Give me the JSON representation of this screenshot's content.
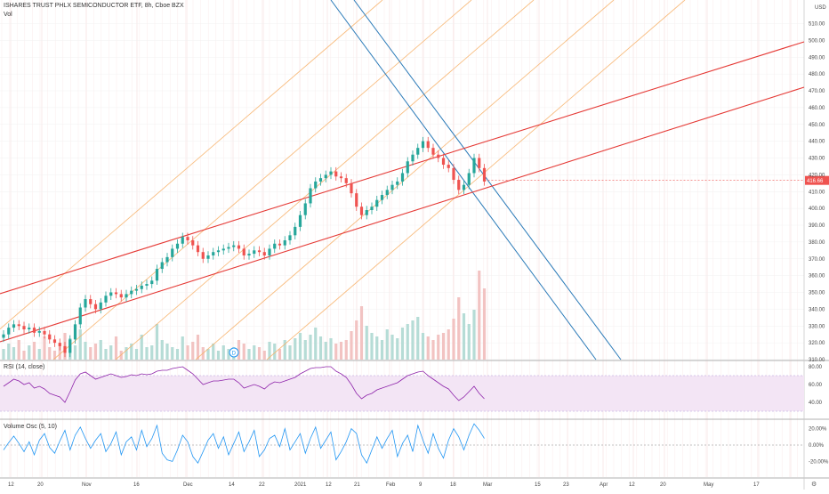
{
  "header": {
    "title": "ISHARES TRUST PHLX SEMICONDUCTOR ETF, 8h, Cboe BZX",
    "vol_label": "Vol",
    "currency": "USD"
  },
  "price_pane": {
    "y_ticks": [
      "510.00",
      "500.00",
      "490.00",
      "480.00",
      "470.00",
      "460.00",
      "450.00",
      "440.00",
      "430.00",
      "420.00",
      "410.00",
      "400.00",
      "390.00",
      "380.00",
      "370.00",
      "360.00",
      "350.00",
      "340.00",
      "330.00",
      "320.00",
      "310.00"
    ],
    "last_price": "416.66",
    "badge_letter": "D"
  },
  "rsi_pane": {
    "label": "RSI (14, close)",
    "y_ticks": [
      "80.00",
      "60.00",
      "40.00"
    ]
  },
  "vol_osc_pane": {
    "label": "Volume Osc (5, 10)",
    "y_ticks": [
      "20.00%",
      "0.00%",
      "-20.00%"
    ]
  },
  "x_axis": {
    "ticks": [
      "12",
      "20",
      "Nov",
      "16",
      "Dec",
      "14",
      "22",
      "2021",
      "12",
      "21",
      "Feb",
      "9",
      "18",
      "Mar",
      "15",
      "23",
      "Apr",
      "12",
      "20",
      "May",
      "17"
    ]
  },
  "colors": {
    "up": "#26a69a",
    "down": "#ef5350",
    "channel_red": "#e53935",
    "blue_lines": "#2a7ab8",
    "orange_lines": "#f7b26a",
    "rsi_line": "#8e24aa",
    "rsi_band": "#f3e5f5",
    "osc_line": "#2196f3",
    "badge": "#2196f3"
  },
  "chart_data": [
    {
      "type": "candlestick",
      "title": "ISHARES TRUST PHLX SEMICONDUCTOR ETF, 8h, Cboe BZX",
      "ylim": [
        310,
        515
      ],
      "series": [
        {
          "name": "Vol",
          "close": [
            325,
            329,
            331,
            330,
            328,
            329,
            326,
            327,
            325,
            322,
            320,
            318,
            314,
            322,
            331,
            341,
            346,
            343,
            340,
            344,
            348,
            350,
            349,
            347,
            349,
            351,
            352,
            354,
            355,
            357,
            364,
            368,
            371,
            376,
            379,
            383,
            381,
            378,
            374,
            370,
            372,
            374,
            375,
            376,
            377,
            378,
            376,
            372,
            373,
            375,
            374,
            372,
            376,
            379,
            378,
            381,
            384,
            389,
            396,
            403,
            412,
            416,
            418,
            420,
            422,
            419,
            418,
            415,
            409,
            401,
            396,
            399,
            401,
            405,
            408,
            411,
            414,
            416,
            421,
            428,
            432,
            436,
            440,
            436,
            432,
            430,
            426,
            424,
            417,
            411,
            414,
            421,
            430,
            424,
            416
          ]
        }
      ]
    },
    {
      "type": "line",
      "title": "RSI (14, close)",
      "ylim": [
        30,
        82
      ],
      "series": [
        {
          "name": "RSI (14, close)",
          "values": [
            58,
            62,
            66,
            64,
            60,
            62,
            56,
            58,
            55,
            50,
            48,
            46,
            40,
            52,
            65,
            72,
            74,
            70,
            66,
            68,
            70,
            72,
            70,
            68,
            69,
            71,
            70,
            72,
            71,
            72,
            75,
            76,
            76,
            78,
            79,
            80,
            76,
            72,
            66,
            60,
            62,
            64,
            64,
            65,
            66,
            66,
            62,
            56,
            58,
            60,
            58,
            55,
            60,
            63,
            62,
            64,
            66,
            68,
            72,
            75,
            78,
            79,
            79,
            80,
            80,
            75,
            72,
            68,
            60,
            50,
            44,
            48,
            50,
            54,
            56,
            58,
            60,
            62,
            66,
            70,
            72,
            74,
            75,
            70,
            66,
            62,
            58,
            55,
            48,
            42,
            46,
            52,
            58,
            50,
            44
          ]
        }
      ]
    },
    {
      "type": "line",
      "title": "Volume Osc (5, 10)",
      "ylim": [
        -32,
        32
      ],
      "series": [
        {
          "name": "Volume Osc (5, 10)",
          "values": [
            -6,
            3,
            11,
            2,
            -8,
            4,
            -12,
            6,
            14,
            -3,
            -10,
            5,
            18,
            -6,
            12,
            22,
            8,
            -4,
            6,
            14,
            -8,
            2,
            16,
            -12,
            4,
            10,
            -6,
            18,
            -2,
            8,
            24,
            -10,
            -18,
            -20,
            -6,
            12,
            4,
            -14,
            -22,
            -8,
            6,
            14,
            -4,
            10,
            -12,
            2,
            16,
            -8,
            4,
            18,
            -14,
            -6,
            8,
            12,
            -2,
            20,
            -6,
            4,
            14,
            -10,
            8,
            22,
            -4,
            6,
            16,
            -18,
            -8,
            4,
            20,
            14,
            -12,
            -22,
            -6,
            10,
            -4,
            8,
            18,
            -14,
            2,
            12,
            -8,
            24,
            6,
            -10,
            14,
            -4,
            -16,
            6,
            20,
            10,
            -6,
            12,
            26,
            18,
            8
          ]
        }
      ]
    }
  ]
}
